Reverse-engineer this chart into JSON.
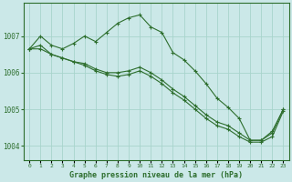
{
  "title": "Graphe pression niveau de la mer (hPa)",
  "background_color": "#cbe8e8",
  "grid_color": "#a8d4cc",
  "line_color": "#2d6e2d",
  "ylim": [
    1003.6,
    1007.9
  ],
  "yticks": [
    1004,
    1005,
    1006,
    1007
  ],
  "xlim": [
    -0.5,
    23.5
  ],
  "xticks": [
    0,
    1,
    2,
    3,
    4,
    5,
    6,
    7,
    8,
    9,
    10,
    11,
    12,
    13,
    14,
    15,
    16,
    17,
    18,
    19,
    20,
    21,
    22,
    23
  ],
  "series": [
    [
      1006.65,
      1007.0,
      1006.75,
      1006.65,
      1006.8,
      1007.0,
      1006.85,
      1007.1,
      1007.35,
      1007.5,
      1007.58,
      1007.25,
      1007.1,
      1006.55,
      1006.35,
      1006.05,
      1005.7,
      1005.3,
      1005.05,
      1004.75,
      1004.15,
      1004.15,
      1004.4,
      1005.0
    ],
    [
      1006.65,
      1006.75,
      1006.5,
      1006.4,
      1006.3,
      1006.25,
      1006.1,
      1006.0,
      1006.0,
      1006.05,
      1006.15,
      1006.0,
      1005.8,
      1005.55,
      1005.35,
      1005.1,
      1004.85,
      1004.65,
      1004.55,
      1004.35,
      1004.15,
      1004.15,
      1004.35,
      1005.0
    ],
    [
      1006.65,
      1006.65,
      1006.5,
      1006.4,
      1006.3,
      1006.2,
      1006.05,
      1005.95,
      1005.9,
      1005.95,
      1006.05,
      1005.9,
      1005.7,
      1005.45,
      1005.25,
      1005.0,
      1004.75,
      1004.55,
      1004.45,
      1004.25,
      1004.1,
      1004.1,
      1004.25,
      1004.95
    ]
  ]
}
